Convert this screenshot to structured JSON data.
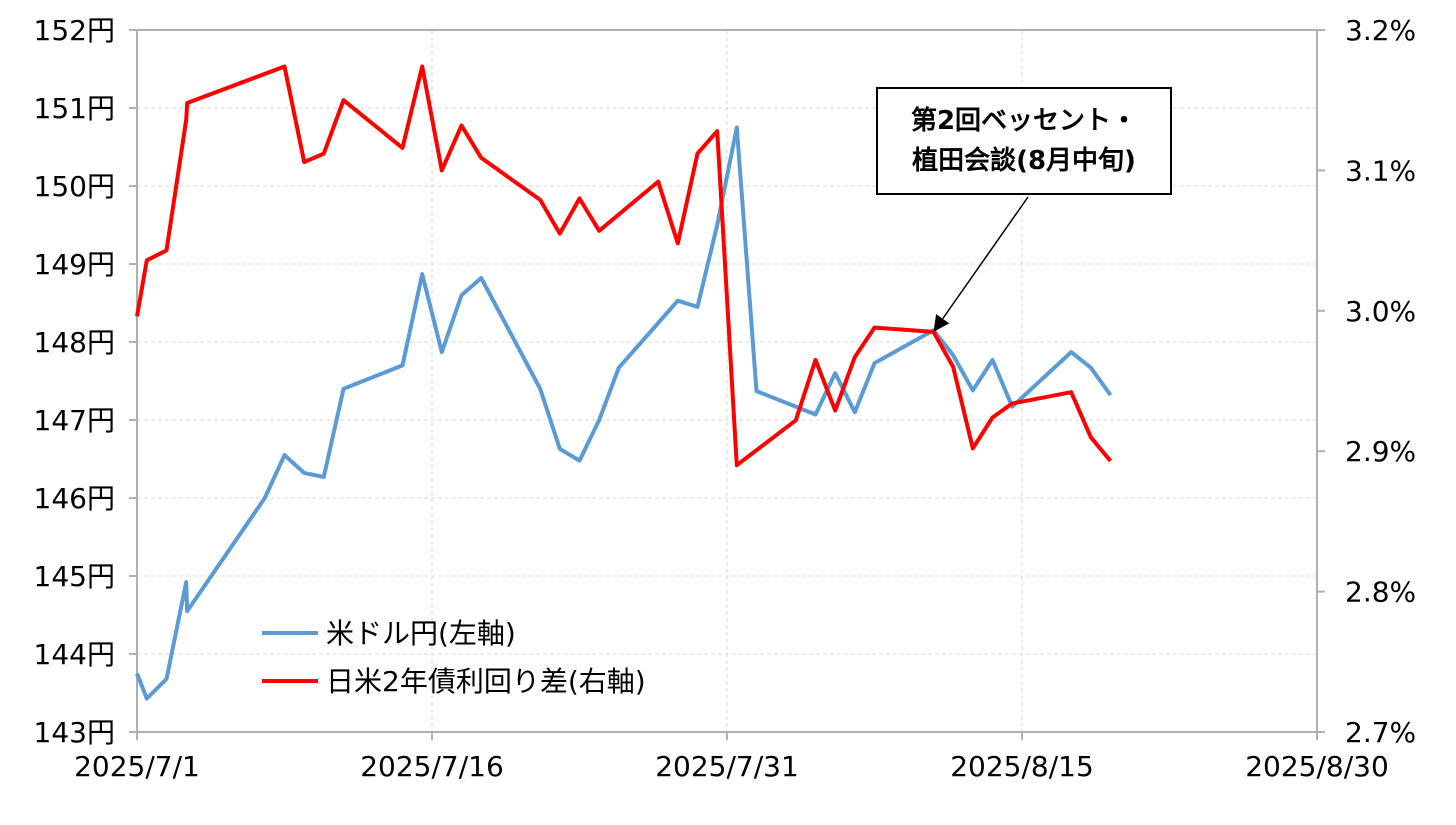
{
  "chart_data": {
    "type": "line",
    "x_dates": [
      "2025/7/1",
      "2025/7/2",
      "2025/7/3",
      "2025/7/4",
      "2025/7/7",
      "2025/7/8",
      "2025/7/9",
      "2025/7/10",
      "2025/7/11",
      "2025/7/14",
      "2025/7/15",
      "2025/7/16",
      "2025/7/17",
      "2025/7/18",
      "2025/7/22",
      "2025/7/23",
      "2025/7/24",
      "2025/7/25",
      "2025/7/28",
      "2025/7/29",
      "2025/7/30",
      "2025/7/31",
      "2025/8/1",
      "2025/8/4",
      "2025/8/5",
      "2025/8/6",
      "2025/8/7",
      "2025/8/8",
      "2025/8/11",
      "2025/8/12",
      "2025/8/13",
      "2025/8/14",
      "2025/8/15",
      "2025/8/18",
      "2025/8/19",
      "2025/8/20"
    ],
    "series": [
      {
        "name": "米ドル円(左軸)",
        "axis": "left",
        "color": "#5b9bd5",
        "points": [
          [
            "2025/7/1",
            143.75
          ],
          [
            "2025/7/1.5",
            143.43
          ],
          [
            "2025/7/2.5",
            143.68
          ],
          [
            "2025/7/3.5",
            144.92
          ],
          [
            "2025/7/3.55",
            144.55
          ],
          [
            "2025/7/7.5",
            146.0
          ],
          [
            "2025/7/8.5",
            146.55
          ],
          [
            "2025/7/9.5",
            146.32
          ],
          [
            "2025/7/10.5",
            146.27
          ],
          [
            "2025/7/11.5",
            147.4
          ],
          [
            "2025/7/14.5",
            147.7
          ],
          [
            "2025/7/15.5",
            148.87
          ],
          [
            "2025/7/16.5",
            147.87
          ],
          [
            "2025/7/17.5",
            148.6
          ],
          [
            "2025/7/18.5",
            148.82
          ],
          [
            "2025/7/21.5",
            147.4
          ],
          [
            "2025/7/22.5",
            146.63
          ],
          [
            "2025/7/23.5",
            146.48
          ],
          [
            "2025/7/24.5",
            147.0
          ],
          [
            "2025/7/25.5",
            147.67
          ],
          [
            "2025/7/28.5",
            148.53
          ],
          [
            "2025/7/29.5",
            148.45
          ],
          [
            "2025/7/30.5",
            149.5
          ],
          [
            "2025/7/31.5",
            150.75
          ],
          [
            "2025/8/1.5",
            147.37
          ],
          [
            "2025/8/4.5",
            147.07
          ],
          [
            "2025/8/5.5",
            147.6
          ],
          [
            "2025/8/6.5",
            147.1
          ],
          [
            "2025/8/7.5",
            147.73
          ],
          [
            "2025/8/10.5",
            148.15
          ],
          [
            "2025/8/11.5",
            147.83
          ],
          [
            "2025/8/12.5",
            147.38
          ],
          [
            "2025/8/13.5",
            147.77
          ],
          [
            "2025/8/14.5",
            147.17
          ],
          [
            "2025/8/17.5",
            147.87
          ],
          [
            "2025/8/18.5",
            147.67
          ],
          [
            "2025/8/19.5",
            147.32
          ]
        ]
      },
      {
        "name": "日米2年債利回り差(右軸)",
        "axis": "right",
        "color": "#ff0000",
        "points": [
          [
            "2025/7/1",
            2.996
          ],
          [
            "2025/7/1.5",
            3.036
          ],
          [
            "2025/7/2.5",
            3.043
          ],
          [
            "2025/7/3.5",
            3.136
          ],
          [
            "2025/7/3.55",
            3.148
          ],
          [
            "2025/7/8.5",
            3.174
          ],
          [
            "2025/7/9.5",
            3.106
          ],
          [
            "2025/7/10.5",
            3.112
          ],
          [
            "2025/7/11.5",
            3.15
          ],
          [
            "2025/7/14.5",
            3.116
          ],
          [
            "2025/7/15.5",
            3.174
          ],
          [
            "2025/7/16.5",
            3.1
          ],
          [
            "2025/7/17.5",
            3.132
          ],
          [
            "2025/7/18.5",
            3.109
          ],
          [
            "2025/7/21.5",
            3.079
          ],
          [
            "2025/7/22.5",
            3.055
          ],
          [
            "2025/7/23.5",
            3.08
          ],
          [
            "2025/7/24.5",
            3.057
          ],
          [
            "2025/7/27.5",
            3.092
          ],
          [
            "2025/7/28.5",
            3.048
          ],
          [
            "2025/7/29.5",
            3.112
          ],
          [
            "2025/7/30.5",
            3.128
          ],
          [
            "2025/7/31.5",
            2.89
          ],
          [
            "2025/8/3.5",
            2.922
          ],
          [
            "2025/8/4.5",
            2.965
          ],
          [
            "2025/8/5.5",
            2.929
          ],
          [
            "2025/8/6.5",
            2.967
          ],
          [
            "2025/8/7.5",
            2.988
          ],
          [
            "2025/8/10.5",
            2.985
          ],
          [
            "2025/8/11.5",
            2.96
          ],
          [
            "2025/8/12.5",
            2.902
          ],
          [
            "2025/8/13.5",
            2.924
          ],
          [
            "2025/8/14.5",
            2.934
          ],
          [
            "2025/8/17.5",
            2.942
          ],
          [
            "2025/8/18.5",
            2.91
          ],
          [
            "2025/8/19.5",
            2.893
          ]
        ]
      }
    ],
    "x_ticks": [
      "2025/7/1",
      "2025/7/16",
      "2025/7/31",
      "2025/8/15",
      "2025/8/30"
    ],
    "x_range_days": [
      0,
      60
    ],
    "y_left": {
      "range": [
        143,
        152
      ],
      "ticks": [
        "143円",
        "144円",
        "145円",
        "146円",
        "147円",
        "148円",
        "149円",
        "150円",
        "151円",
        "152円"
      ]
    },
    "y_right": {
      "range": [
        2.7,
        3.2
      ],
      "ticks": [
        "2.7%",
        "2.8%",
        "2.9%",
        "3.0%",
        "3.1%",
        "3.2%"
      ]
    },
    "legend": [
      "米ドル円(左軸)",
      "日米2年債利回り差(右軸)"
    ],
    "legend_position": "bottom-left",
    "grid": true,
    "annotation": {
      "line1": "第2回ベッセント・",
      "line2": "植田会談(8月中旬)",
      "target": [
        "2025/8/10.5",
        2.985
      ]
    }
  }
}
